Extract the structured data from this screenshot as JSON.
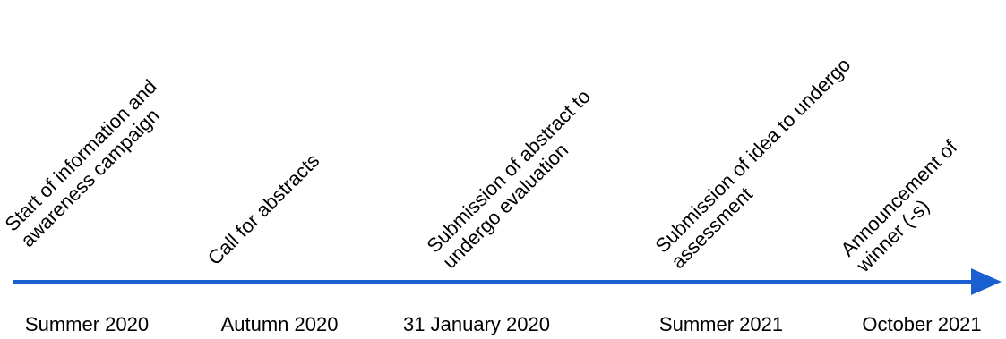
{
  "colors": {
    "axis": "#1a5fd0",
    "text": "#000000",
    "background": "#ffffff"
  },
  "milestones": [
    {
      "date": "Summer 2020",
      "lines": [
        "Start of information and",
        "awareness campaign"
      ]
    },
    {
      "date": "Autumn 2020",
      "lines": [
        "Call for abstracts"
      ]
    },
    {
      "date": "31 January 2020",
      "lines": [
        "Submission of abstract to",
        "undergo evaluation"
      ]
    },
    {
      "date": "Summer 2021",
      "lines": [
        "Submission of idea to undergo",
        "assessment"
      ]
    },
    {
      "date": "October 2021",
      "lines": [
        "Announcement of",
        "winner (-s)"
      ]
    }
  ]
}
